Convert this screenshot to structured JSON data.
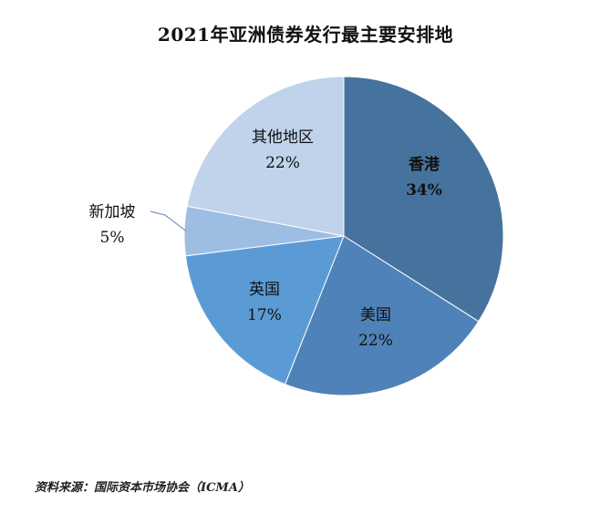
{
  "chart_data": {
    "type": "pie",
    "title": "2021年亚洲债券发行最主要安排地",
    "slices": [
      {
        "label": "香港",
        "value": 34,
        "value_label": "34%",
        "color": "#46739e",
        "bold": true
      },
      {
        "label": "美国",
        "value": 22,
        "value_label": "22%",
        "color": "#4f82b8",
        "bold": false
      },
      {
        "label": "英国",
        "value": 17,
        "value_label": "17%",
        "color": "#5b9bd5",
        "bold": false
      },
      {
        "label": "新加坡",
        "value": 5,
        "value_label": "5%",
        "color": "#9dbde3",
        "bold": false
      },
      {
        "label": "其他地区",
        "value": 22,
        "value_label": "22%",
        "color": "#c0d3ea",
        "bold": false
      }
    ],
    "start": "12-o'clock",
    "direction": "clockwise"
  },
  "source": "资料来源：国际资本市场协会（ICMA）"
}
